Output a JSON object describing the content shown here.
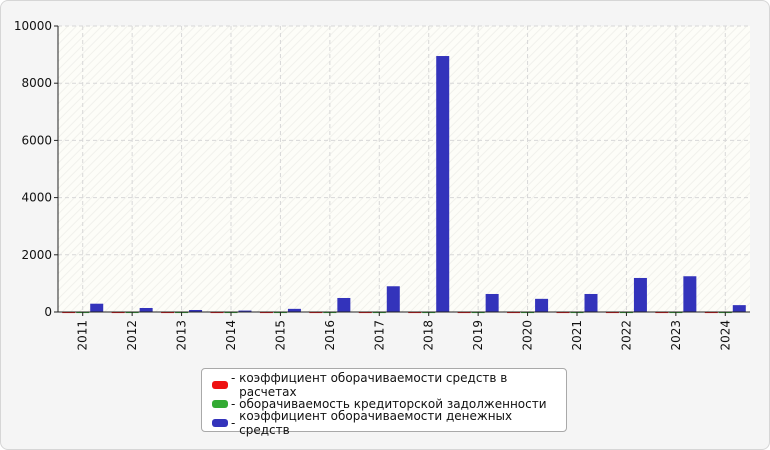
{
  "chart_data": {
    "type": "bar",
    "categories": [
      "2011",
      "2012",
      "2013",
      "2014",
      "2015",
      "2016",
      "2017",
      "2018",
      "2019",
      "2020",
      "2021",
      "2022",
      "2023",
      "2024"
    ],
    "series": [
      {
        "name": "коэффициент оборачиваемости средств в расчетах",
        "color": "#ee1111",
        "values": [
          15,
          15,
          15,
          15,
          15,
          15,
          15,
          15,
          15,
          15,
          15,
          15,
          15,
          15
        ]
      },
      {
        "name": "оборачиваемость кредиторской задолженности",
        "color": "#33aa33",
        "values": [
          15,
          15,
          15,
          15,
          15,
          15,
          15,
          15,
          15,
          15,
          15,
          15,
          15,
          15
        ]
      },
      {
        "name": "коэффициент оборачиваемости денежных средств",
        "color": "#3333bb",
        "values": [
          290,
          140,
          70,
          50,
          110,
          490,
          900,
          8950,
          630,
          460,
          630,
          1190,
          1250,
          240
        ]
      }
    ],
    "yticks": [
      "0",
      "2000",
      "4000",
      "6000",
      "8000",
      "10000"
    ],
    "ylim": [
      0,
      10000
    ],
    "grid": true,
    "legend_position": "bottom"
  }
}
